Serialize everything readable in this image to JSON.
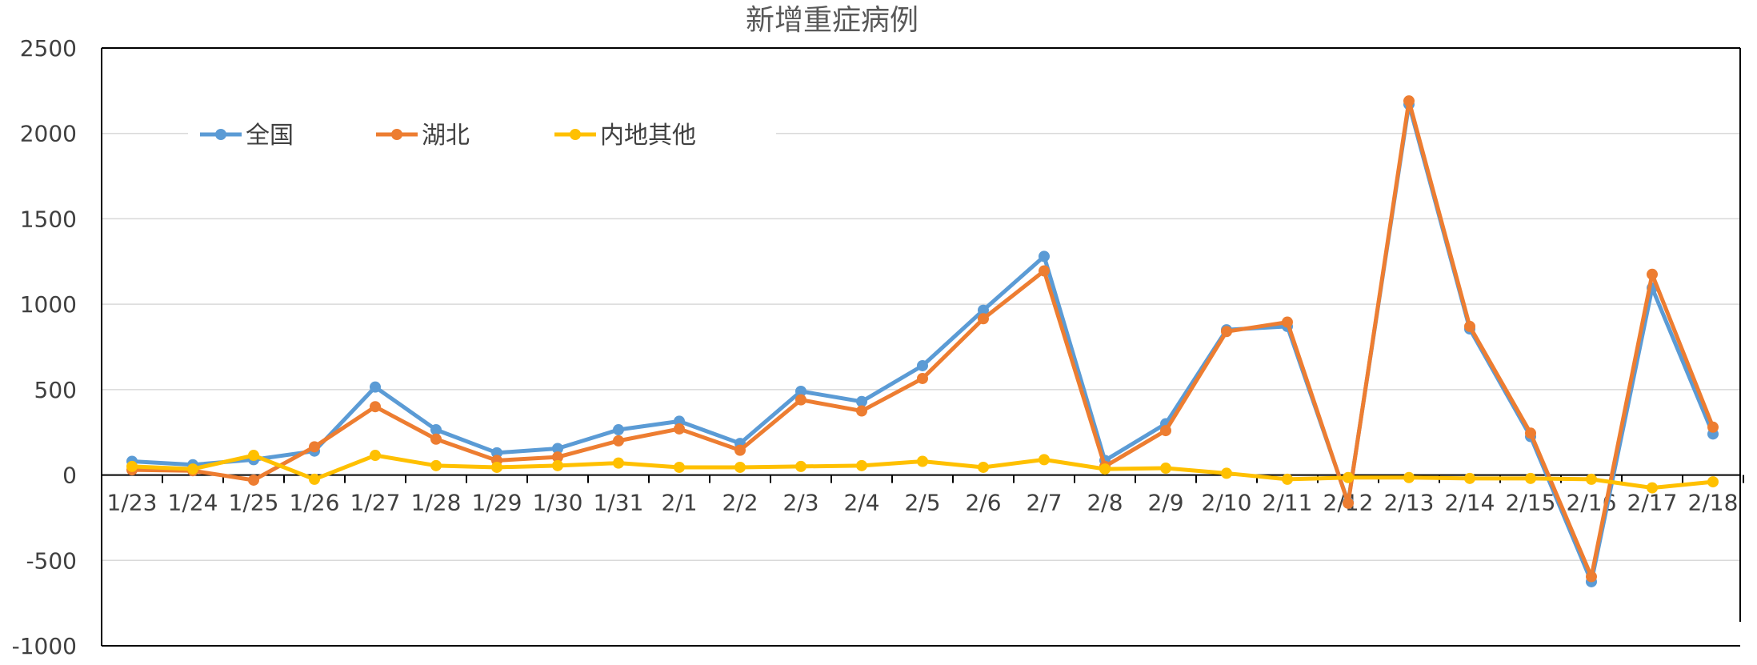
{
  "chart_data": {
    "type": "line",
    "title": "新增重症病例",
    "xlabel": "",
    "ylabel": "",
    "categories": [
      "1/23",
      "1/24",
      "1/25",
      "1/26",
      "1/27",
      "1/28",
      "1/29",
      "1/30",
      "1/31",
      "2/1",
      "2/2",
      "2/3",
      "2/4",
      "2/5",
      "2/6",
      "2/7",
      "2/8",
      "2/9",
      "2/10",
      "2/11",
      "2/12",
      "2/13",
      "2/14",
      "2/15",
      "2/16",
      "2/17",
      "2/18"
    ],
    "ylim": [
      -1000,
      2500
    ],
    "yticks": [
      "2500",
      "2000",
      "1500",
      "1000",
      "500",
      "0",
      "-500",
      "-1000"
    ],
    "grid": true,
    "legend_position": "top-left",
    "series": [
      {
        "name": "全国",
        "color": "#5B9BD5",
        "values": [
          80,
          60,
          90,
          140,
          515,
          265,
          130,
          155,
          265,
          315,
          185,
          490,
          430,
          640,
          965,
          1280,
          85,
          300,
          850,
          870,
          -160,
          2170,
          855,
          225,
          -625,
          1095,
          240
        ]
      },
      {
        "name": "湖北",
        "color": "#ED7D31",
        "values": [
          30,
          25,
          -30,
          165,
          400,
          210,
          85,
          105,
          200,
          270,
          145,
          440,
          375,
          565,
          915,
          1195,
          50,
          260,
          840,
          895,
          -165,
          2190,
          870,
          245,
          -595,
          1175,
          280
        ]
      },
      {
        "name": "内地其他",
        "color": "#FFC000",
        "values": [
          50,
          35,
          115,
          -25,
          115,
          55,
          45,
          55,
          70,
          45,
          45,
          50,
          55,
          80,
          45,
          90,
          35,
          40,
          10,
          -25,
          -15,
          -15,
          -20,
          -20,
          -25,
          -75,
          -40
        ]
      }
    ]
  }
}
